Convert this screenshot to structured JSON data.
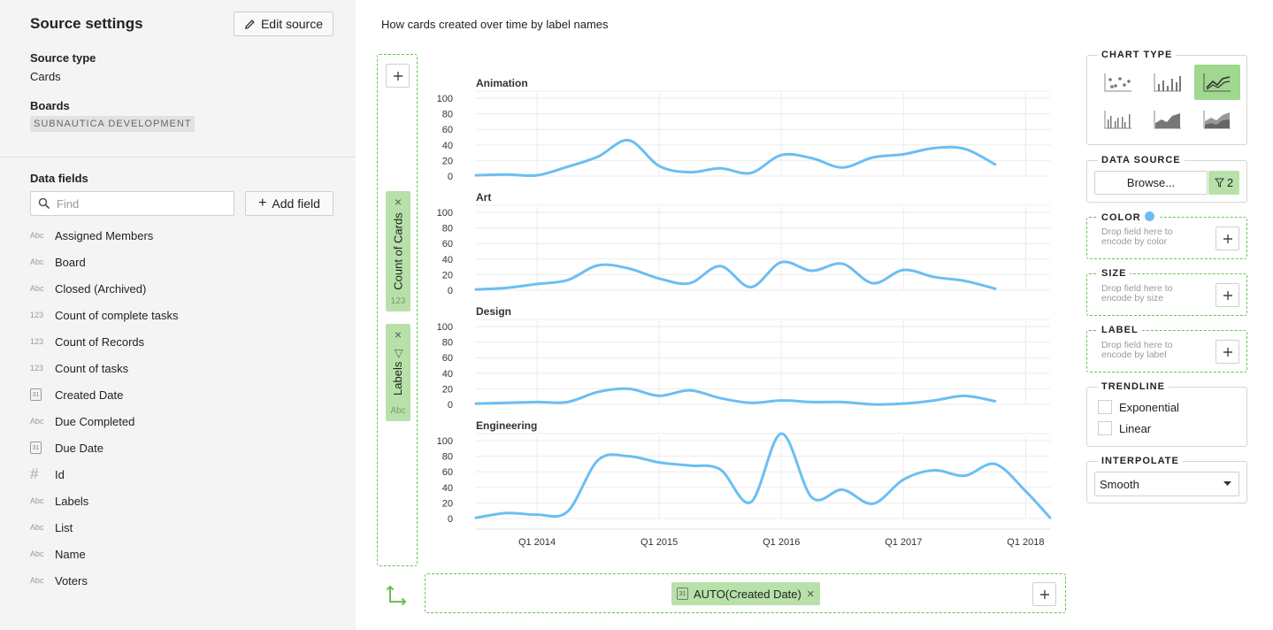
{
  "source": {
    "title": "Source settings",
    "edit_label": "Edit source",
    "type_label": "Source type",
    "type_value": "Cards",
    "boards_label": "Boards",
    "board_tag": "SUBNAUTICA DEVELOPMENT"
  },
  "data_fields": {
    "title": "Data fields",
    "find_placeholder": "Find",
    "add_label": "Add field",
    "items": [
      {
        "kind": "Abc",
        "label": "Assigned Members"
      },
      {
        "kind": "Abc",
        "label": "Board"
      },
      {
        "kind": "Abc",
        "label": "Closed (Archived)"
      },
      {
        "kind": "123",
        "label": "Count of complete tasks"
      },
      {
        "kind": "123",
        "label": "Count of Records"
      },
      {
        "kind": "123",
        "label": "Count of tasks"
      },
      {
        "kind": "31",
        "label": "Created Date"
      },
      {
        "kind": "Abc",
        "label": "Due Completed"
      },
      {
        "kind": "31",
        "label": "Due Date"
      },
      {
        "kind": "#",
        "label": "Id"
      },
      {
        "kind": "Abc",
        "label": "Labels"
      },
      {
        "kind": "Abc",
        "label": "List"
      },
      {
        "kind": "Abc",
        "label": "Name"
      },
      {
        "kind": "Abc",
        "label": "Voters"
      }
    ]
  },
  "chart_title": "How cards created over time by label names",
  "shelves": {
    "y_pill_1": {
      "label": "Count of Cards",
      "sub": "123"
    },
    "y_pill_2": {
      "label": "Labels",
      "sub": "Abc"
    },
    "x_pill": {
      "icon_text": "31",
      "label": "AUTO(Created Date)"
    }
  },
  "panel": {
    "chart_type_label": "CHART TYPE",
    "chart_types": [
      "scatter",
      "bar",
      "line",
      "grouped-bar",
      "area",
      "stacked-area"
    ],
    "selected_chart_type": "line",
    "data_source_label": "DATA SOURCE",
    "browse_label": "Browse...",
    "filter_count": "2",
    "color_label": "COLOR",
    "color_hint": "Drop field here to encode by color",
    "size_label": "SIZE",
    "size_hint": "Drop field here to encode by size",
    "label_label": "LABEL",
    "label_hint": "Drop field here to encode by label",
    "trendline_label": "TRENDLINE",
    "trend_options": [
      "Exponential",
      "Linear"
    ],
    "interpolate_label": "INTERPOLATE",
    "interpolate_value": "Smooth",
    "accent": "#6cbef2",
    "selected_bg": "#9fd88e"
  },
  "chart_data": {
    "type": "line",
    "interpolation": "smooth",
    "color": "#6cbef2",
    "x_ticks": [
      "Q1 2014",
      "Q1 2015",
      "Q1 2016",
      "Q1 2017",
      "Q1 2018"
    ],
    "x_tick_positions": [
      2014.0,
      2015.0,
      2016.0,
      2017.0,
      2018.0
    ],
    "xlim": [
      2013.5,
      2018.2
    ],
    "ylim": [
      0,
      100
    ],
    "y_ticks": [
      0,
      20,
      40,
      60,
      80,
      100
    ],
    "grid": true,
    "series": [
      {
        "name": "Animation",
        "points": [
          [
            2013.5,
            1
          ],
          [
            2013.75,
            2
          ],
          [
            2014.0,
            1
          ],
          [
            2014.25,
            12
          ],
          [
            2014.5,
            25
          ],
          [
            2014.75,
            46
          ],
          [
            2015.0,
            13
          ],
          [
            2015.25,
            5
          ],
          [
            2015.5,
            10
          ],
          [
            2015.75,
            4
          ],
          [
            2016.0,
            27
          ],
          [
            2016.25,
            23
          ],
          [
            2016.5,
            11
          ],
          [
            2016.75,
            24
          ],
          [
            2017.0,
            28
          ],
          [
            2017.25,
            36
          ],
          [
            2017.5,
            35
          ],
          [
            2017.75,
            15
          ]
        ]
      },
      {
        "name": "Art",
        "points": [
          [
            2013.5,
            1
          ],
          [
            2013.75,
            3
          ],
          [
            2014.0,
            8
          ],
          [
            2014.25,
            13
          ],
          [
            2014.5,
            32
          ],
          [
            2014.75,
            28
          ],
          [
            2015.0,
            15
          ],
          [
            2015.25,
            9
          ],
          [
            2015.5,
            31
          ],
          [
            2015.75,
            4
          ],
          [
            2016.0,
            36
          ],
          [
            2016.25,
            25
          ],
          [
            2016.5,
            34
          ],
          [
            2016.75,
            9
          ],
          [
            2017.0,
            26
          ],
          [
            2017.25,
            17
          ],
          [
            2017.5,
            12
          ],
          [
            2017.75,
            2
          ]
        ]
      },
      {
        "name": "Design",
        "points": [
          [
            2013.5,
            1
          ],
          [
            2013.75,
            2
          ],
          [
            2014.0,
            3
          ],
          [
            2014.25,
            3
          ],
          [
            2014.5,
            16
          ],
          [
            2014.75,
            20
          ],
          [
            2015.0,
            11
          ],
          [
            2015.25,
            18
          ],
          [
            2015.5,
            8
          ],
          [
            2015.75,
            2
          ],
          [
            2016.0,
            5
          ],
          [
            2016.25,
            3
          ],
          [
            2016.5,
            3
          ],
          [
            2016.75,
            0
          ],
          [
            2017.0,
            1
          ],
          [
            2017.25,
            5
          ],
          [
            2017.5,
            11
          ],
          [
            2017.75,
            4
          ]
        ]
      },
      {
        "name": "Engineering",
        "points": [
          [
            2013.5,
            1
          ],
          [
            2013.75,
            7
          ],
          [
            2014.0,
            5
          ],
          [
            2014.25,
            9
          ],
          [
            2014.5,
            75
          ],
          [
            2014.75,
            80
          ],
          [
            2015.0,
            72
          ],
          [
            2015.25,
            68
          ],
          [
            2015.5,
            63
          ],
          [
            2015.75,
            21
          ],
          [
            2016.0,
            113
          ],
          [
            2016.25,
            27
          ],
          [
            2016.5,
            37
          ],
          [
            2016.75,
            19
          ],
          [
            2017.0,
            50
          ],
          [
            2017.25,
            62
          ],
          [
            2017.5,
            55
          ],
          [
            2017.75,
            70
          ],
          [
            2018.0,
            35
          ],
          [
            2018.2,
            1
          ]
        ]
      }
    ]
  }
}
